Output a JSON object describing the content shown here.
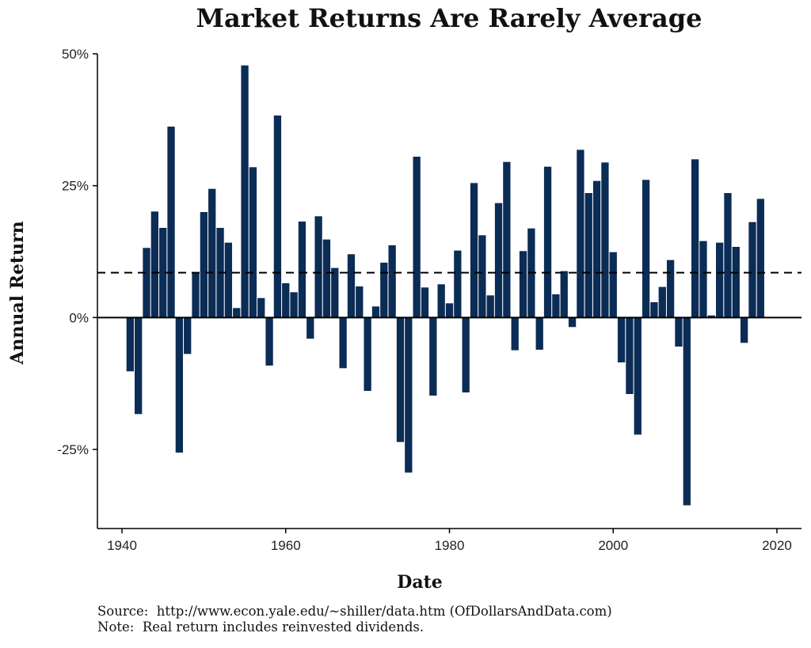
{
  "chart_data": {
    "type": "bar",
    "title": "Market Returns Are Rarely Average",
    "xlabel": "Date",
    "ylabel": "Annual Return",
    "xlim": [
      1937,
      2023
    ],
    "ylim": [
      -40,
      50
    ],
    "xticks": [
      1940,
      1960,
      1980,
      2000,
      2020
    ],
    "xtick_labels": [
      "1940",
      "1960",
      "1980",
      "2000",
      "2020"
    ],
    "yticks": [
      -25,
      0,
      25,
      50
    ],
    "ytick_labels": [
      "-25%",
      "0%",
      "25%",
      "50%"
    ],
    "grid": false,
    "legend": "none",
    "bar_color": "#0b2c55",
    "average_line": {
      "value": 8.5,
      "style": "dashed"
    },
    "x": [
      1941,
      1942,
      1943,
      1944,
      1945,
      1946,
      1947,
      1948,
      1949,
      1950,
      1951,
      1952,
      1953,
      1954,
      1955,
      1956,
      1957,
      1958,
      1959,
      1960,
      1961,
      1962,
      1963,
      1964,
      1965,
      1966,
      1967,
      1968,
      1969,
      1970,
      1971,
      1972,
      1973,
      1974,
      1975,
      1976,
      1977,
      1978,
      1979,
      1980,
      1981,
      1982,
      1983,
      1984,
      1985,
      1986,
      1987,
      1988,
      1989,
      1990,
      1991,
      1992,
      1993,
      1994,
      1995,
      1996,
      1997,
      1998,
      1999,
      2000,
      2001,
      2002,
      2003,
      2004,
      2005,
      2006,
      2007,
      2008,
      2009,
      2010,
      2011,
      2012,
      2013,
      2014,
      2015,
      2016,
      2017,
      2018
    ],
    "values": [
      -10.2,
      -18.3,
      13.2,
      20.1,
      17.0,
      36.2,
      -25.6,
      -6.9,
      8.5,
      20.0,
      24.4,
      17.0,
      14.2,
      1.8,
      47.8,
      28.5,
      3.7,
      -9.1,
      38.3,
      6.5,
      4.8,
      18.2,
      -4.0,
      19.2,
      14.8,
      9.4,
      -9.6,
      12.0,
      5.9,
      -13.9,
      2.1,
      10.4,
      13.7,
      -23.6,
      -29.4,
      30.5,
      5.7,
      -14.8,
      6.3,
      2.7,
      12.7,
      -14.2,
      25.5,
      15.6,
      4.2,
      21.7,
      29.5,
      -6.2,
      12.6,
      16.9,
      -6.1,
      28.6,
      4.4,
      8.8,
      -1.8,
      31.8,
      23.6,
      25.9,
      29.4,
      12.4,
      -8.5,
      -14.5,
      -22.2,
      26.1,
      2.9,
      5.8,
      10.9,
      -5.5,
      -35.6,
      30.0,
      14.5,
      0.4,
      14.2,
      23.6,
      13.4,
      -4.8,
      18.1,
      22.5
    ]
  },
  "caption": {
    "source": "Source:  http://www.econ.yale.edu/~shiller/data.htm (OfDollarsAndData.com)",
    "note": "Note:  Real return includes reinvested dividends."
  }
}
